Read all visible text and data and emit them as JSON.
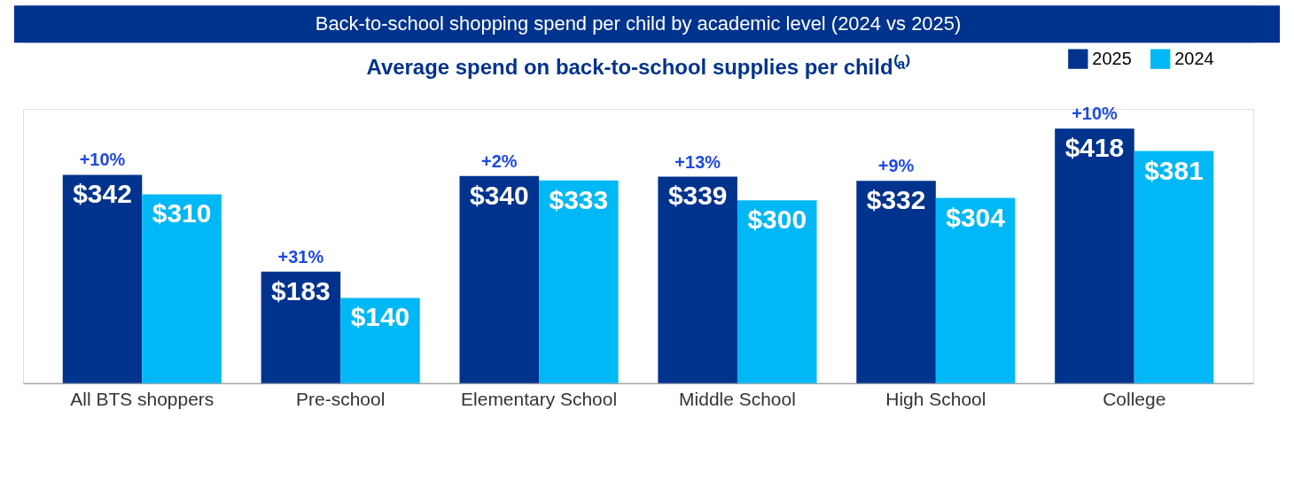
{
  "chart_data": {
    "type": "bar",
    "title": "Back-to-school shopping spend per child by academic level (2024 vs 2025)",
    "subtitle": "Average spend on back-to-school supplies per child⁽ᵃ⁾",
    "categories": [
      "All BTS shoppers",
      "Pre-school",
      "Elementary School",
      "Middle School",
      "High School",
      "College"
    ],
    "series": [
      {
        "name": "2025",
        "color": "#00338d",
        "values": [
          342,
          183,
          340,
          339,
          332,
          418
        ],
        "value_labels": [
          "$342",
          "$183",
          "$340",
          "$339",
          "$332",
          "$418"
        ]
      },
      {
        "name": "2024",
        "color": "#00b8f5",
        "values": [
          310,
          140,
          333,
          300,
          304,
          381
        ],
        "value_labels": [
          "$310",
          "$140",
          "$333",
          "$300",
          "$304",
          "$381"
        ]
      }
    ],
    "annotations": [
      {
        "text": "+10%",
        "x": "All BTS shoppers",
        "y": 342
      },
      {
        "text": "+31%",
        "x": "Pre-school",
        "y": 183
      },
      {
        "text": "+2%",
        "x": "Elementary School",
        "y": 340
      },
      {
        "text": "+13%",
        "x": "Middle School",
        "y": 339
      },
      {
        "text": "+9%",
        "x": "High School",
        "y": 332
      },
      {
        "text": "+10%",
        "x": "College",
        "y": 418
      }
    ],
    "legend": "top right",
    "grid": false
  }
}
